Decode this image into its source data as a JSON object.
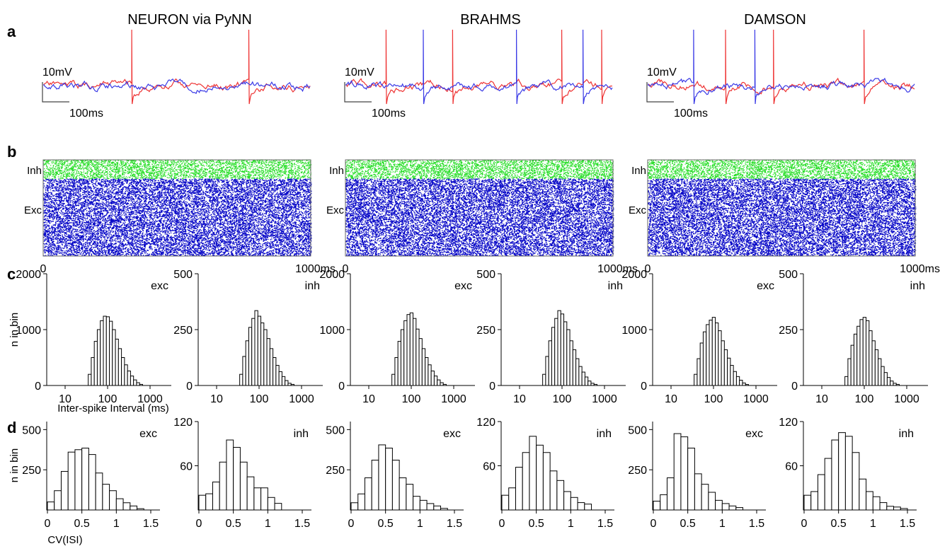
{
  "panel_letters": [
    "a",
    "b",
    "c",
    "d"
  ],
  "simulators": [
    "NEURON via PyNN",
    "BRAHMS",
    "DAMSON"
  ],
  "colors": {
    "exc_trace": "#ee3333",
    "inh_trace": "#3a3ae6",
    "exc_raster": "#0a0ac8",
    "inh_raster": "#22dd22",
    "axis": "#000000"
  },
  "chart_data": [
    {
      "type": "line",
      "panel": "a",
      "titles": [
        "NEURON via PyNN",
        "BRAHMS",
        "DAMSON"
      ],
      "scale_bar": {
        "voltage": "10mV",
        "time": "100ms"
      },
      "series": [
        {
          "color": "#ee3333"
        },
        {
          "color": "#3a3ae6"
        }
      ],
      "x_range_ms": [
        0,
        1000
      ],
      "red_spike_times_ms": [
        [
          330,
          770
        ],
        [
          150,
          400,
          810,
          960
        ],
        [
          290,
          470,
          810
        ]
      ],
      "blue_spike_times_ms": [
        [],
        [
          290,
          640,
          890
        ],
        [
          170,
          400
        ]
      ]
    },
    {
      "type": "scatter",
      "panel": "b",
      "y_labels": [
        "Inh",
        "Exc"
      ],
      "x_ticks": [
        "0",
        "1000ms"
      ],
      "x_range_ms": [
        0,
        1000
      ],
      "inh_fraction": 0.2,
      "exc_fraction": 0.8
    },
    {
      "type": "bar",
      "panel": "c",
      "ylabel": "n in bin",
      "xlabel": "Inter-spike Interval (ms)",
      "x_ticks": [
        "10",
        "100",
        "1000"
      ],
      "log_x": true,
      "bin_start_ms": 35,
      "bin_ratio": 1.178,
      "plots": [
        {
          "label": "exc",
          "ymax": 2000,
          "yticks": [
            "0",
            "1000",
            "2000"
          ],
          "values": [
            200,
            500,
            790,
            1000,
            1160,
            1240,
            1230,
            1150,
            1000,
            830,
            660,
            500,
            370,
            260,
            170,
            100,
            50,
            20
          ]
        },
        {
          "label": "inh",
          "ymax": 500,
          "yticks": [
            "0",
            "250",
            "500"
          ],
          "values": [
            50,
            130,
            200,
            260,
            300,
            335,
            310,
            280,
            250,
            210,
            165,
            125,
            90,
            62,
            40,
            22,
            10,
            5
          ]
        },
        {
          "label": "exc",
          "ymax": 2000,
          "yticks": [
            "0",
            "1000",
            "2000"
          ],
          "values": [
            200,
            500,
            790,
            1000,
            1160,
            1270,
            1300,
            1200,
            1010,
            840,
            660,
            500,
            370,
            260,
            170,
            100,
            50,
            20
          ]
        },
        {
          "label": "inh",
          "ymax": 500,
          "yticks": [
            "0",
            "250",
            "500"
          ],
          "values": [
            50,
            130,
            200,
            260,
            300,
            335,
            320,
            285,
            250,
            200,
            160,
            120,
            85,
            60,
            38,
            20,
            10,
            5
          ]
        },
        {
          "label": "exc",
          "ymax": 2000,
          "yticks": [
            "0",
            "1000",
            "2000"
          ],
          "values": [
            200,
            480,
            760,
            960,
            1090,
            1170,
            1220,
            1120,
            980,
            800,
            640,
            490,
            360,
            250,
            160,
            95,
            45,
            18
          ]
        },
        {
          "label": "inh",
          "ymax": 500,
          "yticks": [
            "0",
            "250",
            "500"
          ],
          "values": [
            40,
            120,
            180,
            230,
            265,
            295,
            305,
            290,
            245,
            200,
            160,
            120,
            85,
            58,
            36,
            20,
            10,
            5
          ]
        }
      ]
    },
    {
      "type": "bar",
      "panel": "d",
      "ylabel": "n in bin",
      "xlabel": "CV(ISI)",
      "x_ticks": [
        "0",
        "0.5",
        "1",
        "1.5"
      ],
      "xlim": [
        0,
        1.5
      ],
      "bin_width": 0.1,
      "plots": [
        {
          "label": "exc",
          "ymax": 550,
          "yticks": [
            "250",
            "500"
          ],
          "values": [
            50,
            120,
            240,
            360,
            375,
            385,
            345,
            230,
            160,
            120,
            70,
            45,
            25,
            8
          ]
        },
        {
          "label": "inh",
          "ymax": 120,
          "yticks": [
            "60",
            "120"
          ],
          "values": [
            20,
            22,
            38,
            65,
            95,
            85,
            65,
            45,
            30,
            30,
            17,
            9
          ]
        },
        {
          "label": "exc",
          "ymax": 550,
          "yticks": [
            "250",
            "500"
          ],
          "values": [
            45,
            100,
            200,
            310,
            405,
            385,
            310,
            200,
            160,
            85,
            60,
            40,
            25,
            10
          ]
        },
        {
          "label": "inh",
          "ymax": 120,
          "yticks": [
            "60",
            "120"
          ],
          "values": [
            20,
            30,
            58,
            78,
            100,
            88,
            78,
            53,
            40,
            25,
            17,
            10,
            8
          ]
        },
        {
          "label": "exc",
          "ymax": 550,
          "yticks": [
            "250",
            "500"
          ],
          "values": [
            55,
            95,
            200,
            475,
            455,
            385,
            225,
            160,
            110,
            60,
            40,
            25,
            15
          ]
        },
        {
          "label": "inh",
          "ymax": 120,
          "yticks": [
            "60",
            "120"
          ],
          "values": [
            20,
            25,
            48,
            70,
            95,
            105,
            100,
            78,
            42,
            25,
            18,
            10,
            5,
            4,
            2
          ]
        }
      ]
    }
  ]
}
